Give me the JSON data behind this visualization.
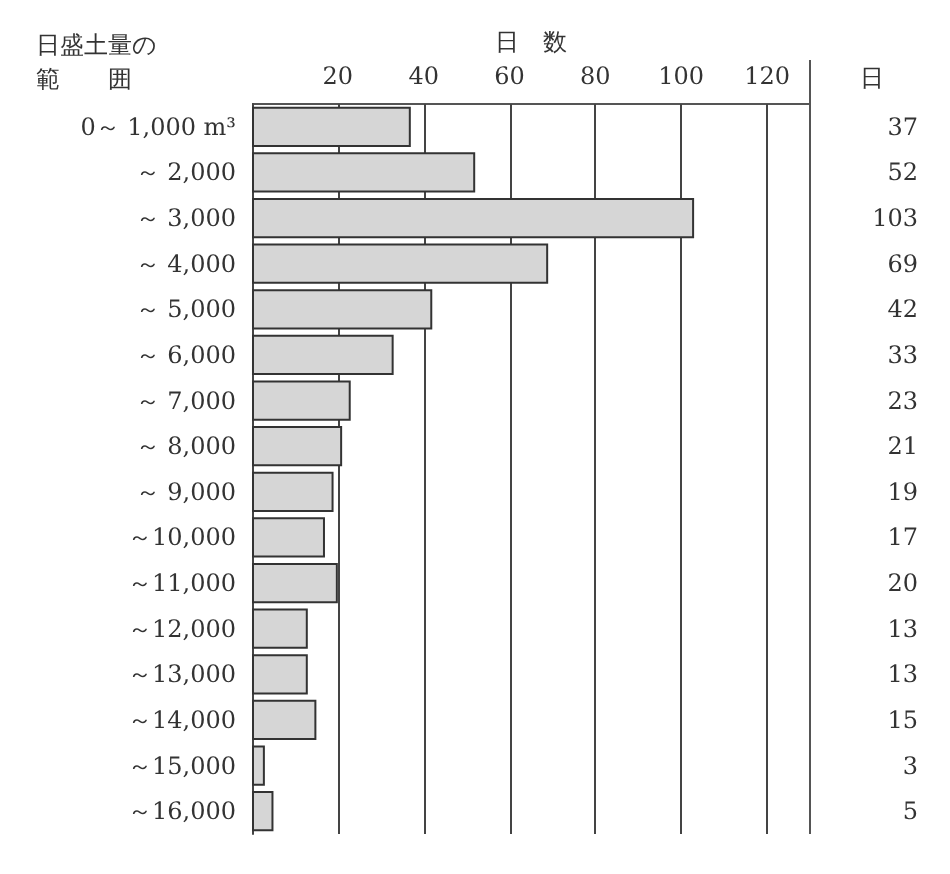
{
  "chart_data": {
    "type": "bar",
    "orientation": "horizontal",
    "xlabel": "日　数",
    "ylabel": "日盛土量の範　　囲",
    "categories": [
      "0～ 1,000 m³",
      "～ 2,000",
      "～ 3,000",
      "～ 4,000",
      "～ 5,000",
      "～ 6,000",
      "～ 7,000",
      "～ 8,000",
      "～ 9,000",
      "～10,000",
      "～11,000",
      "～12,000",
      "～13,000",
      "～14,000",
      "～15,000",
      "～16,000"
    ],
    "values": [
      37,
      52,
      103,
      69,
      42,
      33,
      23,
      21,
      19,
      17,
      20,
      13,
      13,
      15,
      3,
      5
    ],
    "color": "#d6d6d6",
    "xlim": [
      0,
      130
    ],
    "xticks": [
      20,
      40,
      60,
      80,
      100,
      120
    ],
    "grid": "x",
    "data_labels": true,
    "annotations": [
      "日"
    ]
  }
}
